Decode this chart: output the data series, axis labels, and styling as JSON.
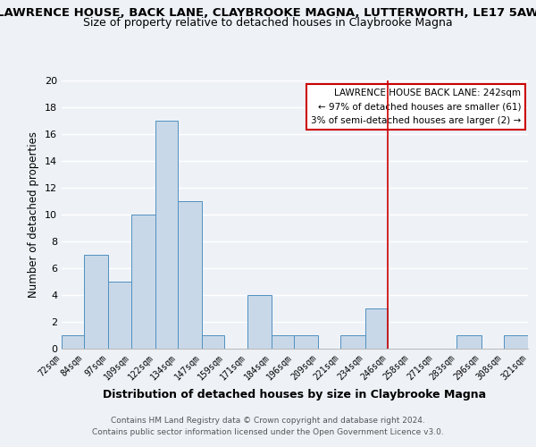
{
  "title": "LAWRENCE HOUSE, BACK LANE, CLAYBROOKE MAGNA, LUTTERWORTH, LE17 5AW",
  "subtitle": "Size of property relative to detached houses in Claybrooke Magna",
  "xlabel": "Distribution of detached houses by size in Claybrooke Magna",
  "ylabel": "Number of detached properties",
  "bin_edges": [
    72,
    84,
    97,
    109,
    122,
    134,
    147,
    159,
    171,
    184,
    196,
    209,
    221,
    234,
    246,
    258,
    271,
    283,
    296,
    308,
    321
  ],
  "bin_labels": [
    "72sqm",
    "84sqm",
    "97sqm",
    "109sqm",
    "122sqm",
    "134sqm",
    "147sqm",
    "159sqm",
    "171sqm",
    "184sqm",
    "196sqm",
    "209sqm",
    "221sqm",
    "234sqm",
    "246sqm",
    "258sqm",
    "271sqm",
    "283sqm",
    "296sqm",
    "308sqm",
    "321sqm"
  ],
  "counts": [
    1,
    7,
    5,
    10,
    17,
    11,
    1,
    0,
    4,
    1,
    1,
    0,
    1,
    3,
    0,
    0,
    0,
    1,
    0,
    1
  ],
  "bar_color": "#c8d8e8",
  "bar_edge_color": "#5090c0",
  "vline_x": 246,
  "vline_color": "#cc0000",
  "ylim": [
    0,
    20
  ],
  "yticks": [
    0,
    2,
    4,
    6,
    8,
    10,
    12,
    14,
    16,
    18,
    20
  ],
  "annotation_title": "LAWRENCE HOUSE BACK LANE: 242sqm",
  "annotation_line1": "← 97% of detached houses are smaller (61)",
  "annotation_line2": "3% of semi-detached houses are larger (2) →",
  "annotation_box_color": "#ffffff",
  "annotation_border_color": "#cc0000",
  "footer_line1": "Contains HM Land Registry data © Crown copyright and database right 2024.",
  "footer_line2": "Contains public sector information licensed under the Open Government Licence v3.0.",
  "background_color": "#eef2f7",
  "grid_color": "#ffffff",
  "title_fontsize": 9.5,
  "subtitle_fontsize": 9
}
